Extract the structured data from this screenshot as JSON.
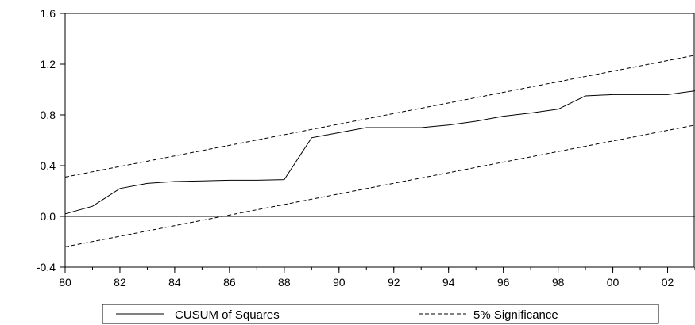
{
  "chart_data": {
    "type": "line",
    "title": "",
    "xlabel": "",
    "ylabel": "",
    "xlim": [
      1980,
      2003
    ],
    "ylim": [
      -0.4,
      1.6
    ],
    "grid": false,
    "legend_placement": "bottom",
    "x_ticks": [
      {
        "value": 1980,
        "label": "80"
      },
      {
        "value": 1982,
        "label": "82"
      },
      {
        "value": 1984,
        "label": "84"
      },
      {
        "value": 1986,
        "label": "86"
      },
      {
        "value": 1988,
        "label": "88"
      },
      {
        "value": 1990,
        "label": "90"
      },
      {
        "value": 1992,
        "label": "92"
      },
      {
        "value": 1994,
        "label": "94"
      },
      {
        "value": 1996,
        "label": "96"
      },
      {
        "value": 1998,
        "label": "98"
      },
      {
        "value": 2000,
        "label": "00"
      },
      {
        "value": 2002,
        "label": "02"
      }
    ],
    "y_ticks": [
      {
        "value": -0.4,
        "label": "-0.4"
      },
      {
        "value": 0.0,
        "label": "0.0"
      },
      {
        "value": 0.4,
        "label": "0.4"
      },
      {
        "value": 0.8,
        "label": "0.8"
      },
      {
        "value": 1.2,
        "label": "1.2"
      },
      {
        "value": 1.6,
        "label": "1.6"
      }
    ],
    "reference_line": {
      "y": 0.0,
      "color": "#000000"
    },
    "series": [
      {
        "name": "CUSUM of Squares",
        "style": "solid",
        "color": "#000000",
        "x": [
          1980,
          1981,
          1982,
          1983,
          1984,
          1985,
          1986,
          1987,
          1988,
          1989,
          1990,
          1991,
          1992,
          1993,
          1994,
          1995,
          1996,
          1997,
          1998,
          1999,
          2000,
          2001,
          2002,
          2003
        ],
        "y": [
          0.02,
          0.08,
          0.22,
          0.26,
          0.275,
          0.28,
          0.285,
          0.285,
          0.29,
          0.62,
          0.66,
          0.7,
          0.7,
          0.7,
          0.72,
          0.75,
          0.79,
          0.815,
          0.845,
          0.95,
          0.96,
          0.96,
          0.96,
          0.99
        ]
      },
      {
        "name": "5% Significance",
        "style": "dashed",
        "color": "#000000",
        "bounds": [
          {
            "x": [
              1980,
              2003
            ],
            "y": [
              0.31,
              1.27
            ]
          },
          {
            "x": [
              1980,
              2003
            ],
            "y": [
              -0.24,
              0.72
            ]
          }
        ]
      }
    ]
  }
}
